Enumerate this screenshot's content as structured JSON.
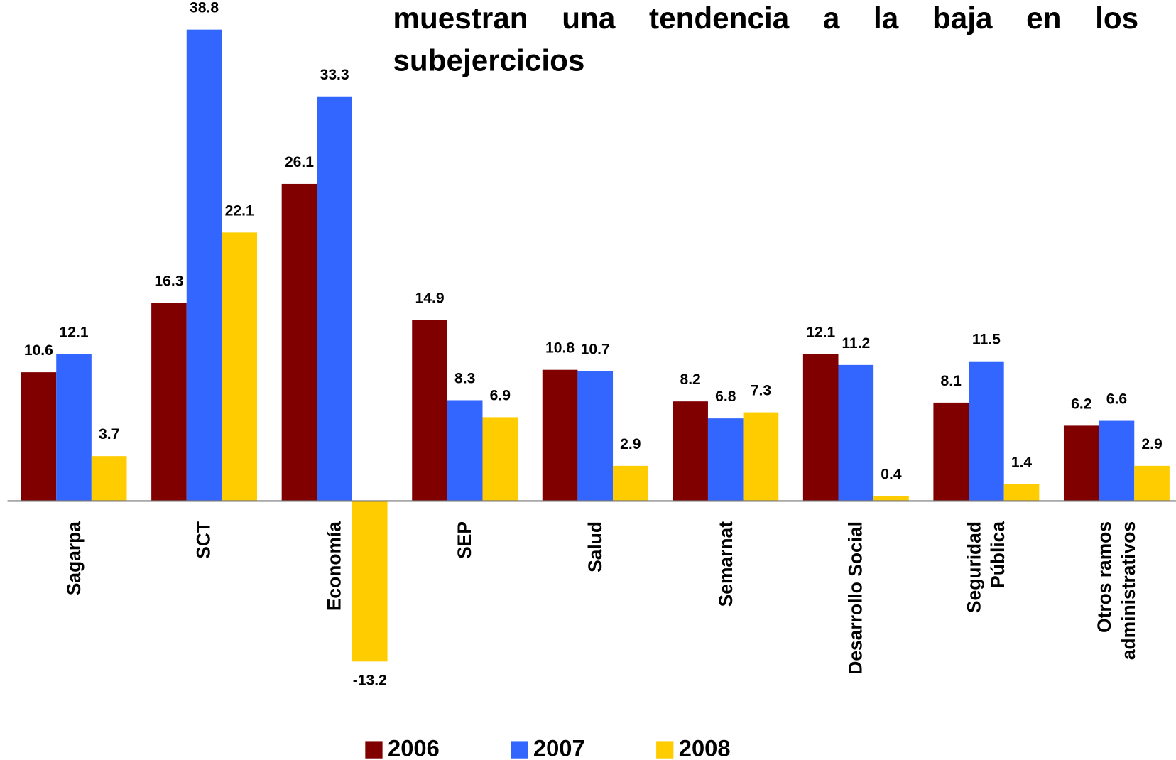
{
  "chart_data": {
    "type": "bar",
    "title": "muestran una tendencia a la baja en los subejercicios",
    "categories": [
      "Sagarpa",
      "SCT",
      "Economía",
      "SEP",
      "Salud",
      "Semarnat",
      "Desarrollo Social",
      "Seguridad Pública",
      "Otros ramos administrativos"
    ],
    "series": [
      {
        "name": "2006",
        "color": "#800000",
        "values": [
          10.6,
          16.3,
          26.1,
          14.9,
          10.8,
          8.2,
          12.1,
          8.1,
          6.2
        ]
      },
      {
        "name": "2007",
        "color": "#3366ff",
        "values": [
          12.1,
          38.8,
          33.3,
          8.3,
          10.7,
          6.8,
          11.2,
          11.5,
          6.6
        ]
      },
      {
        "name": "2008",
        "color": "#ffcc00",
        "values": [
          3.7,
          22.1,
          -13.2,
          6.9,
          2.9,
          7.3,
          0.4,
          1.4,
          2.9
        ]
      }
    ],
    "ylim": [
      -15,
      40
    ],
    "legend": "bottom"
  }
}
